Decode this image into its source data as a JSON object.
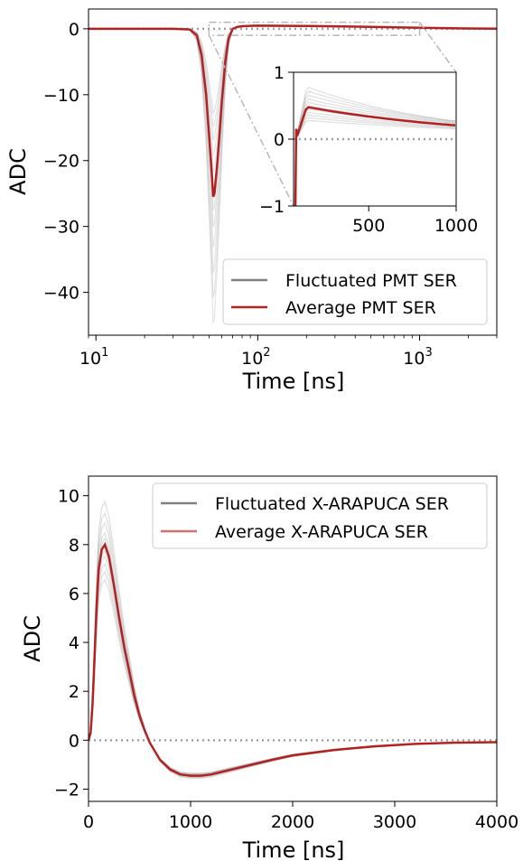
{
  "chart_data": [
    {
      "type": "line",
      "xscale": "log",
      "xlabel": "Time [ns]",
      "ylabel": "ADC",
      "xlim": [
        9,
        3000
      ],
      "ylim": [
        -46.5,
        3
      ],
      "xticks": [
        {
          "value": 10,
          "base": "10",
          "exp": "1"
        },
        {
          "value": 100,
          "base": "10",
          "exp": "2"
        },
        {
          "value": 1000,
          "base": "10",
          "exp": "3"
        }
      ],
      "yticks": [
        {
          "value": 0,
          "label": "0"
        },
        {
          "value": -10,
          "label": "−10"
        },
        {
          "value": -20,
          "label": "−20"
        },
        {
          "value": -30,
          "label": "−30"
        },
        {
          "value": -40,
          "label": "−40"
        }
      ],
      "legend_position": "lower-right",
      "legend": [
        "Fluctuated PMT SER",
        "Average PMT SER"
      ],
      "series": [
        {
          "name": "Average PMT SER",
          "color": "#b22222",
          "x": [
            9,
            20,
            30,
            38,
            42,
            45,
            48,
            50,
            52,
            53,
            54,
            56,
            58,
            60,
            63,
            66,
            70,
            75,
            80,
            90,
            100,
            150,
            200,
            300,
            500,
            1000,
            2000,
            3000
          ],
          "y": [
            0,
            0,
            0,
            -0.1,
            -1,
            -4,
            -10,
            -16,
            -22,
            -25.5,
            -25,
            -21,
            -16,
            -11,
            -5,
            -1.5,
            0,
            0.3,
            0.4,
            0.45,
            0.48,
            0.45,
            0.42,
            0.38,
            0.3,
            0.15,
            0.05,
            0.02
          ]
        }
      ],
      "fluctuated_color": "#808080",
      "baseline_color": "#a0a0a0",
      "inset": {
        "xlim": [
          70,
          1000
        ],
        "ylim": [
          -1,
          1
        ],
        "xticks": [
          {
            "value": 500,
            "label": "500"
          },
          {
            "value": 1000,
            "label": "1000"
          }
        ],
        "yticks": [
          {
            "value": 1,
            "label": "1"
          },
          {
            "value": 0,
            "label": "0"
          },
          {
            "value": -1,
            "label": "−1"
          }
        ],
        "zoom_region": {
          "xlim": [
            50,
            1000
          ],
          "ylim": [
            -1,
            1
          ]
        }
      }
    },
    {
      "type": "line",
      "xscale": "linear",
      "xlabel": "Time [ns]",
      "ylabel": "ADC",
      "xlim": [
        0,
        4000
      ],
      "ylim": [
        -2.5,
        10.8
      ],
      "xticks": [
        {
          "value": 0,
          "label": "0"
        },
        {
          "value": 1000,
          "label": "1000"
        },
        {
          "value": 2000,
          "label": "2000"
        },
        {
          "value": 3000,
          "label": "3000"
        },
        {
          "value": 4000,
          "label": "4000"
        }
      ],
      "yticks": [
        {
          "value": 10,
          "label": "10"
        },
        {
          "value": 8,
          "label": "8"
        },
        {
          "value": 6,
          "label": "6"
        },
        {
          "value": 4,
          "label": "4"
        },
        {
          "value": 2,
          "label": "2"
        },
        {
          "value": 0,
          "label": "0"
        },
        {
          "value": -2,
          "label": "−2"
        }
      ],
      "legend_position": "upper-right",
      "legend": [
        "Fluctuated X-ARAPUCA SER",
        "Average X-ARAPUCA SER"
      ],
      "series": [
        {
          "name": "Average X-ARAPUCA SER",
          "color": "#b22222",
          "x": [
            0,
            20,
            40,
            60,
            80,
            100,
            130,
            160,
            200,
            250,
            300,
            350,
            400,
            450,
            500,
            550,
            600,
            700,
            800,
            900,
            1000,
            1100,
            1200,
            1400,
            1600,
            1800,
            2000,
            2400,
            2800,
            3200,
            3600,
            4000
          ],
          "y": [
            0,
            0.3,
            1.5,
            3.5,
            5.5,
            7,
            7.8,
            8,
            7.5,
            6.3,
            5,
            3.8,
            2.8,
            1.8,
            1,
            0.4,
            -0.1,
            -0.8,
            -1.2,
            -1.4,
            -1.45,
            -1.45,
            -1.4,
            -1.2,
            -1.0,
            -0.8,
            -0.62,
            -0.4,
            -0.25,
            -0.15,
            -0.1,
            -0.08
          ]
        }
      ],
      "fluctuated_color": "#808080",
      "baseline_color": "#a0a0a0"
    }
  ]
}
